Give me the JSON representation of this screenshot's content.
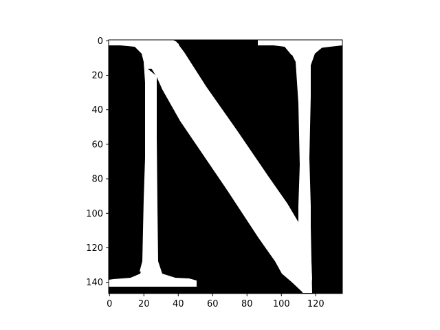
{
  "image": {
    "description_kind": "binary glyph raster",
    "colormap": "gray",
    "background_color": "#000000",
    "foreground_color": "#ffffff"
  },
  "axes": {
    "x_ticks": [
      0,
      20,
      40,
      60,
      80,
      100,
      120
    ],
    "y_ticks": [
      0,
      20,
      40,
      60,
      80,
      100,
      120,
      140
    ],
    "x_range": [
      -0.5,
      135.5
    ],
    "y_range": [
      146.5,
      -0.5
    ]
  },
  "glyph": {
    "character": "N"
  }
}
